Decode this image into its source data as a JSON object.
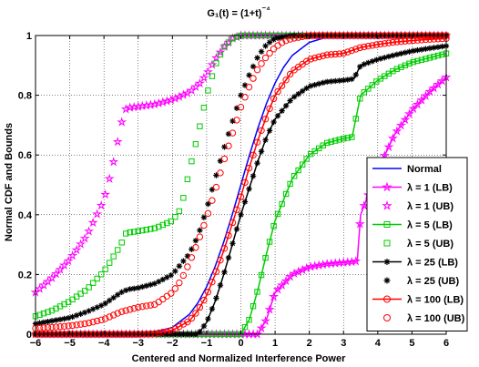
{
  "chart_data": {
    "type": "line",
    "title": "G₁(t) = (1+t)⁻⁴",
    "xlabel": "Centered and Normalized Interference Power",
    "ylabel": "Normal CDF and Bounds",
    "xlim": [
      -6,
      6
    ],
    "ylim": [
      0,
      1
    ],
    "xticks": [
      -6,
      -5,
      -4,
      -3,
      -2,
      -1,
      0,
      1,
      2,
      3,
      4,
      5,
      6
    ],
    "xtick_labels": [
      "−6",
      "−5",
      "−4",
      "−3",
      "−2",
      "−1",
      "0",
      "1",
      "2",
      "3",
      "4",
      "5",
      "6"
    ],
    "yticks": [
      0,
      0.2,
      0.4,
      0.6,
      0.8,
      1
    ],
    "ytick_labels": [
      "0",
      "0.2",
      "0.4",
      "0.6",
      "0.8",
      "1"
    ],
    "grid": true,
    "legend_position": "bottom-right",
    "series": [
      {
        "name": "Normal",
        "color": "#0000ff",
        "marker": "none",
        "line": "solid",
        "x": [
          -6,
          -5,
          -4,
          -3,
          -2.5,
          -2,
          -1.5,
          -1.25,
          -1,
          -0.75,
          -0.5,
          -0.25,
          0,
          0.25,
          0.5,
          0.75,
          1,
          1.25,
          1.5,
          2,
          2.5,
          3,
          4,
          5,
          6
        ],
        "y": [
          0,
          0,
          0,
          0.001,
          0.006,
          0.023,
          0.067,
          0.106,
          0.159,
          0.227,
          0.309,
          0.401,
          0.5,
          0.599,
          0.691,
          0.773,
          0.841,
          0.894,
          0.933,
          0.977,
          0.994,
          0.999,
          1,
          1,
          1
        ]
      },
      {
        "name": "λ = 1 (LB)",
        "color": "#ff00ff",
        "marker": "star",
        "line": "solid",
        "x": [
          -6,
          -5,
          -4,
          -3,
          -2,
          -1,
          0,
          0.5,
          0.75,
          1,
          1.5,
          2,
          2.5,
          3,
          3.25,
          3.4,
          3.5,
          4,
          4.5,
          5,
          5.5,
          6
        ],
        "y": [
          0,
          0,
          0,
          0,
          0,
          0,
          0,
          0,
          0.05,
          0.14,
          0.2,
          0.225,
          0.235,
          0.24,
          0.242,
          0.245,
          0.4,
          0.55,
          0.67,
          0.75,
          0.81,
          0.86
        ]
      },
      {
        "name": "λ = 1 (UB)",
        "color": "#ff00ff",
        "marker": "star",
        "line": "none",
        "x": [
          -6,
          -5.5,
          -5,
          -4.5,
          -4,
          -3.75,
          -3.5,
          -3.4,
          -3.3,
          -3,
          -2.5,
          -2,
          -1.5,
          -1.2,
          -1,
          -0.75,
          -0.5,
          -0.25,
          0,
          0.5,
          1,
          2,
          3,
          4,
          5,
          6
        ],
        "y": [
          0.14,
          0.19,
          0.25,
          0.33,
          0.45,
          0.56,
          0.7,
          0.75,
          0.758,
          0.762,
          0.77,
          0.785,
          0.81,
          0.84,
          0.87,
          0.92,
          0.96,
          0.99,
          1,
          1,
          1,
          1,
          1,
          1,
          1,
          1
        ]
      },
      {
        "name": "λ = 5 (LB)",
        "color": "#00cc00",
        "marker": "square",
        "line": "solid",
        "x": [
          -6,
          -5,
          -4,
          -3,
          -2,
          -1,
          0,
          0.25,
          0.5,
          0.75,
          1,
          1.5,
          2,
          2.5,
          3,
          3.25,
          3.5,
          4,
          4.5,
          5,
          5.5,
          6
        ],
        "y": [
          0,
          0,
          0,
          0,
          0,
          0,
          0,
          0.05,
          0.15,
          0.27,
          0.38,
          0.52,
          0.6,
          0.64,
          0.655,
          0.66,
          0.8,
          0.85,
          0.885,
          0.91,
          0.925,
          0.94
        ]
      },
      {
        "name": "λ = 5 (UB)",
        "color": "#00cc00",
        "marker": "square",
        "line": "none",
        "x": [
          -6,
          -5.5,
          -5,
          -4.5,
          -4,
          -3.5,
          -3.4,
          -3.3,
          -3,
          -2.5,
          -2,
          -1.75,
          -1.5,
          -1.25,
          -1,
          -0.75,
          -0.5,
          -0.25,
          0,
          0.5,
          1,
          2,
          3,
          4,
          5,
          6
        ],
        "y": [
          0.06,
          0.08,
          0.11,
          0.15,
          0.21,
          0.3,
          0.335,
          0.34,
          0.345,
          0.355,
          0.38,
          0.42,
          0.55,
          0.67,
          0.8,
          0.9,
          0.96,
          0.99,
          1,
          1,
          1,
          1,
          1,
          1,
          1,
          1
        ]
      },
      {
        "name": "λ = 25 (LB)",
        "color": "#000000",
        "marker": "asterisk",
        "line": "solid",
        "x": [
          -6,
          -5,
          -4,
          -3,
          -2,
          -1.5,
          -1.25,
          -1,
          -0.75,
          -0.5,
          -0.25,
          0,
          0.25,
          0.5,
          0.75,
          1,
          1.5,
          2,
          2.5,
          3,
          3.3,
          3.5,
          4,
          4.5,
          5,
          5.5,
          6
        ],
        "y": [
          0,
          0,
          0,
          0,
          0,
          0,
          0,
          0.04,
          0.11,
          0.2,
          0.3,
          0.4,
          0.49,
          0.58,
          0.66,
          0.72,
          0.79,
          0.83,
          0.845,
          0.85,
          0.855,
          0.9,
          0.92,
          0.935,
          0.948,
          0.957,
          0.965
        ]
      },
      {
        "name": "λ = 25 (UB)",
        "color": "#000000",
        "marker": "asterisk",
        "line": "none",
        "x": [
          -6,
          -5.5,
          -5,
          -4.5,
          -4,
          -3.5,
          -3.3,
          -3,
          -2.5,
          -2,
          -1.5,
          -1.25,
          -1,
          -0.75,
          -0.5,
          -0.25,
          0,
          0.25,
          0.5,
          0.75,
          1,
          1.5,
          2,
          3,
          4,
          5,
          6
        ],
        "y": [
          0.035,
          0.045,
          0.055,
          0.075,
          0.1,
          0.14,
          0.15,
          0.155,
          0.17,
          0.2,
          0.27,
          0.33,
          0.42,
          0.52,
          0.62,
          0.71,
          0.8,
          0.87,
          0.93,
          0.97,
          0.99,
          1,
          1,
          1,
          1,
          1,
          1
        ]
      },
      {
        "name": "λ = 100 (LB)",
        "color": "#ff0000",
        "marker": "circle",
        "line": "solid",
        "x": [
          -6,
          -5,
          -4,
          -3,
          -2.5,
          -2,
          -1.5,
          -1.25,
          -1,
          -0.75,
          -0.5,
          -0.25,
          0,
          0.25,
          0.5,
          0.75,
          1,
          1.5,
          2,
          2.5,
          3,
          3.5,
          4,
          4.5,
          5,
          5.5,
          6
        ],
        "y": [
          0,
          0,
          0,
          0,
          0.002,
          0.013,
          0.045,
          0.08,
          0.13,
          0.2,
          0.28,
          0.37,
          0.46,
          0.56,
          0.65,
          0.73,
          0.8,
          0.88,
          0.92,
          0.935,
          0.94,
          0.96,
          0.97,
          0.978,
          0.983,
          0.987,
          0.99
        ]
      },
      {
        "name": "λ = 100 (UB)",
        "color": "#ff0000",
        "marker": "circle",
        "line": "none",
        "x": [
          -6,
          -5.5,
          -5,
          -4.5,
          -4,
          -3.5,
          -3,
          -2.5,
          -2,
          -1.75,
          -1.5,
          -1.25,
          -1,
          -0.75,
          -0.5,
          -0.25,
          0,
          0.25,
          0.5,
          0.75,
          1,
          1.25,
          1.5,
          2,
          2.5,
          3,
          4,
          5,
          6
        ],
        "y": [
          0.02,
          0.023,
          0.028,
          0.036,
          0.05,
          0.075,
          0.09,
          0.1,
          0.14,
          0.18,
          0.24,
          0.31,
          0.39,
          0.48,
          0.58,
          0.67,
          0.76,
          0.83,
          0.89,
          0.93,
          0.96,
          0.98,
          0.99,
          1,
          1,
          1,
          1,
          1,
          1
        ]
      }
    ]
  }
}
